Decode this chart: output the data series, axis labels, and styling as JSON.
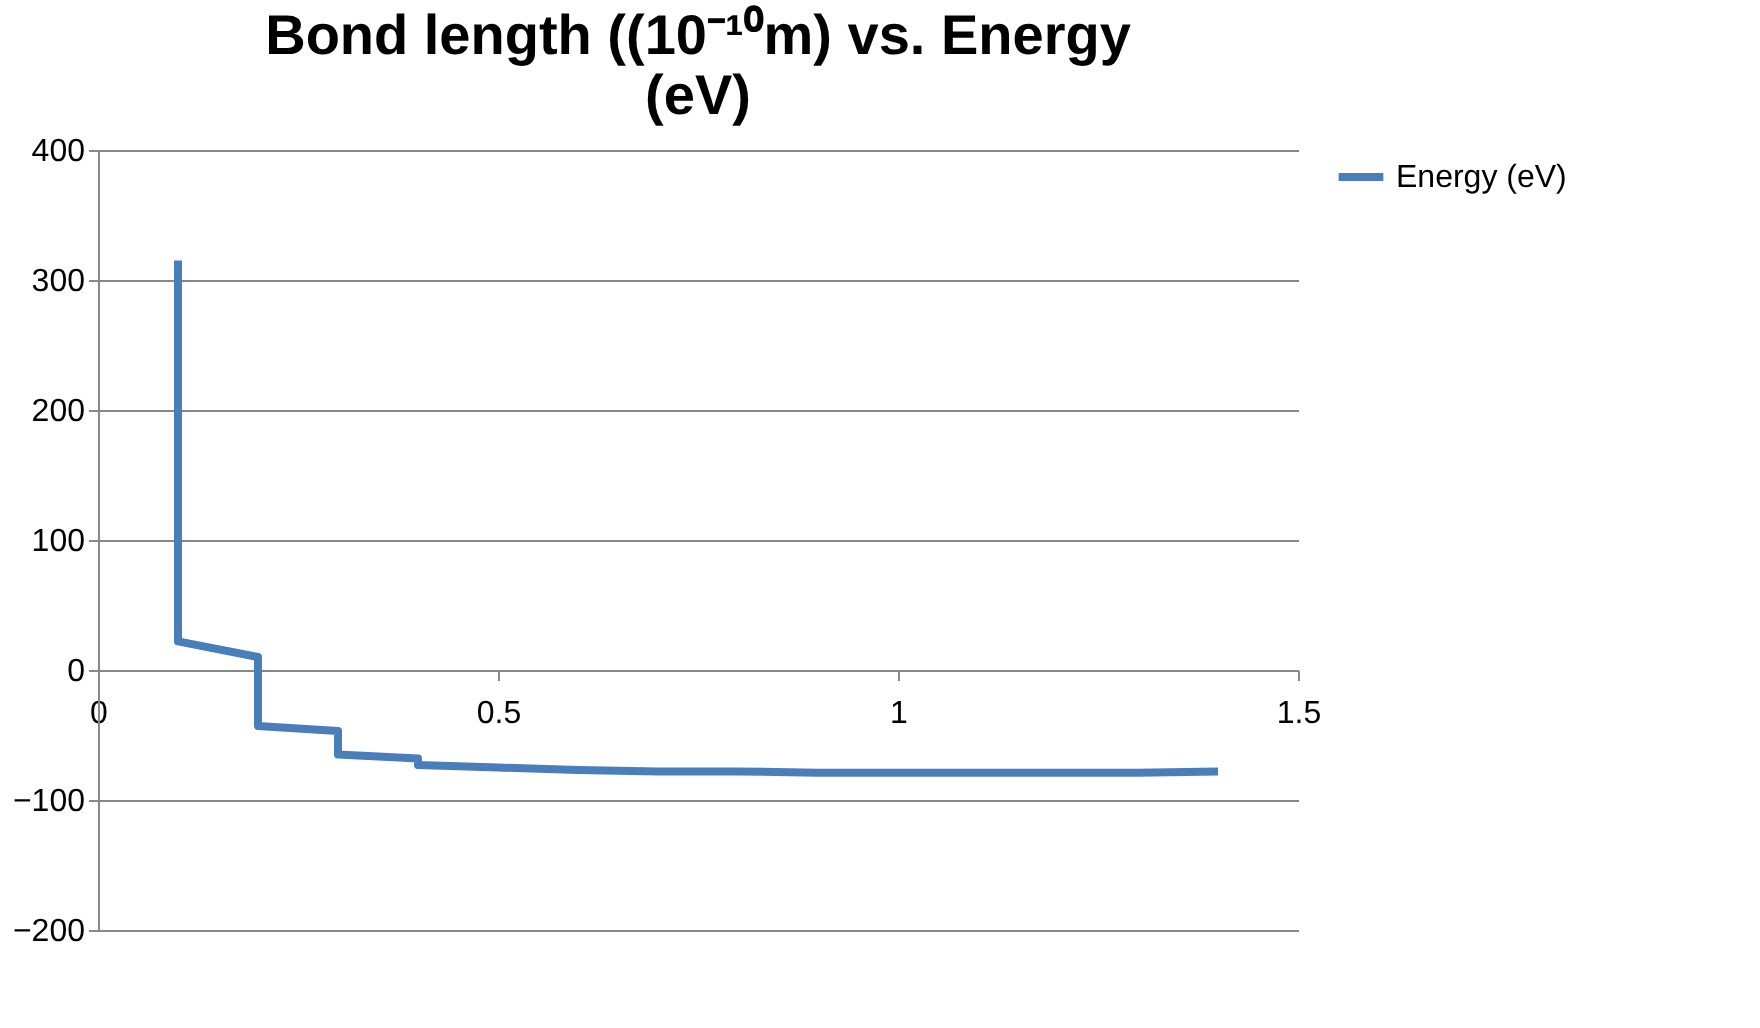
{
  "chart_data": {
    "type": "line",
    "title": "Bond length ((10⁻¹⁰m) vs. Energy (eV)",
    "x": [
      0.1,
      0.1,
      0.2,
      0.2,
      0.3,
      0.3,
      0.4,
      0.4,
      0.5,
      0.6,
      0.7,
      0.8,
      0.9,
      1.0,
      1.1,
      1.2,
      1.3,
      1.4
    ],
    "series": [
      {
        "name": "Energy (eV)",
        "color": "#4a7ebb",
        "values": [
          315,
          22,
          10,
          -43,
          -47,
          -65,
          -68,
          -73,
          -75,
          -77,
          -78,
          -78,
          -79,
          -79,
          -79,
          -79,
          -79,
          -78
        ]
      }
    ],
    "xlim": [
      0,
      1.5
    ],
    "xticks": [
      0,
      0.5,
      1,
      1.5
    ],
    "ylim": [
      -200,
      400
    ],
    "yticks": [
      -200,
      -100,
      0,
      100,
      200,
      300,
      400
    ],
    "grid": "y",
    "legend": "right",
    "marker": "none",
    "line_style": "solid"
  }
}
